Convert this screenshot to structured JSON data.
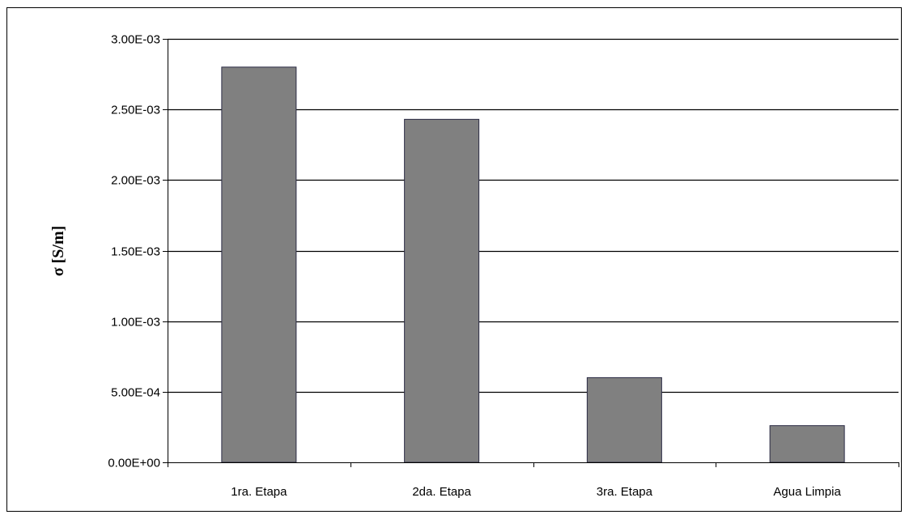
{
  "colors": {
    "bar_fill": "#808080",
    "bar_stroke": "#2b2b44",
    "gridline": "#000000",
    "background": "#ffffff"
  },
  "chart_data": {
    "type": "bar",
    "categories": [
      "1ra. Etapa",
      "2da. Etapa",
      "3ra. Etapa",
      "Agua Limpia"
    ],
    "values": [
      0.0028,
      0.00243,
      0.0006,
      0.00026
    ],
    "ylabel": "σ [S/m]",
    "xlabel": "",
    "title": "",
    "ylim": [
      0,
      0.003
    ],
    "yticks": [
      0,
      0.0005,
      0.001,
      0.0015,
      0.002,
      0.0025,
      0.003
    ],
    "ytick_labels": [
      "0.00E+00",
      "5.00E-04",
      "1.00E-03",
      "1.50E-03",
      "2.00E-03",
      "2.50E-03",
      "3.00E-03"
    ],
    "grid": true,
    "legend": "none"
  }
}
